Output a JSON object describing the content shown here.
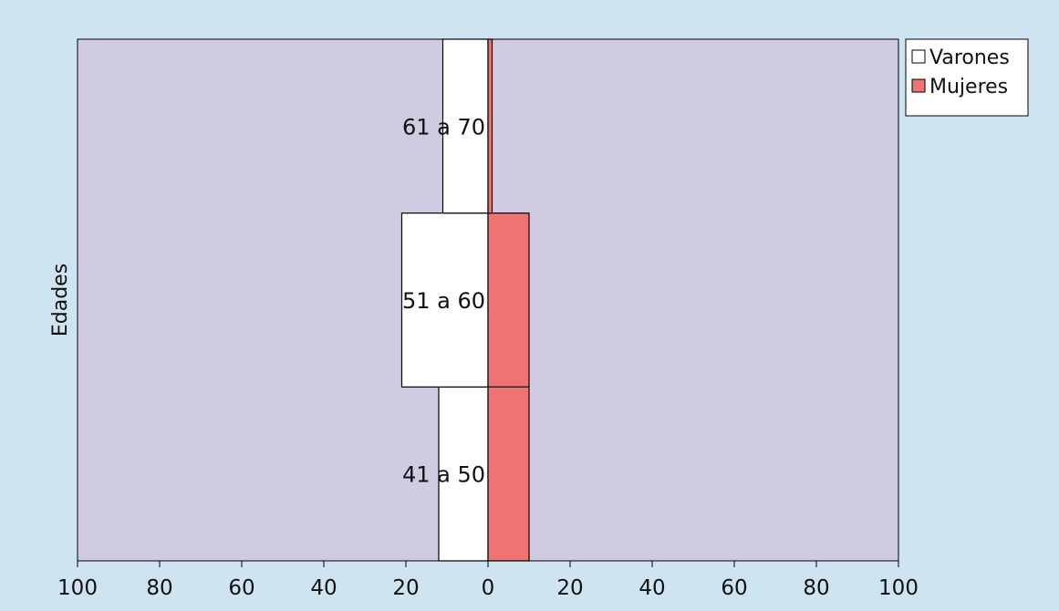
{
  "chart_data": {
    "type": "bar",
    "orientation": "horizontal",
    "layout": "population-pyramid",
    "categories": [
      "41 a 50",
      "51 a 60",
      "61 a 70"
    ],
    "series": [
      {
        "name": "Varones",
        "values": [
          12,
          21,
          11
        ],
        "side": "left",
        "color": "#ffffff"
      },
      {
        "name": "Mujeres",
        "values": [
          10,
          10,
          1
        ],
        "side": "right",
        "color": "#ee7371"
      }
    ],
    "xlim": [
      -100,
      100
    ],
    "xticks": [
      -100,
      -80,
      -60,
      -40,
      -20,
      0,
      20,
      40,
      60,
      80,
      100
    ],
    "xtick_labels": [
      "100",
      "80",
      "60",
      "40",
      "20",
      "0",
      "20",
      "40",
      "60",
      "80",
      "100"
    ],
    "ylabel": "Edades",
    "xlabel": "",
    "legend_position": "top-right",
    "plot_background": "#d0cbe0",
    "page_background": "#cfe4f1",
    "grid": false
  }
}
